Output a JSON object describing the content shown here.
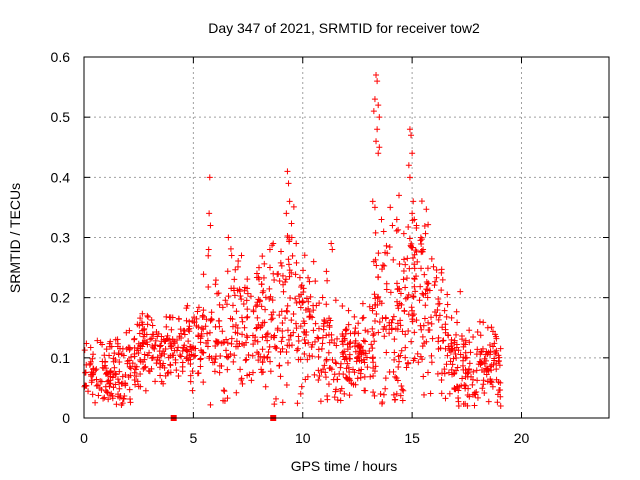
{
  "chart_data": {
    "type": "scatter",
    "title": "Day 347 of 2021, SRMTID for receiver tow2",
    "xlabel": "GPS time / hours",
    "ylabel": "SRMTID / TECUs",
    "xlim": [
      0,
      24
    ],
    "ylim": [
      0,
      0.6
    ],
    "xticks": [
      0,
      5,
      10,
      15,
      20
    ],
    "yticks": [
      0,
      0.1,
      0.2,
      0.3,
      0.4,
      0.5,
      0.6
    ],
    "xtick_labels": [
      "0",
      "5",
      "10",
      "15",
      "20"
    ],
    "ytick_labels": [
      "0",
      "0.1",
      "0.2",
      "0.3",
      "0.4",
      "0.5",
      "0.6"
    ],
    "grid": true,
    "marker": "+",
    "color": "#ff0000",
    "envelope": {
      "note": "approximate typical value and spread of SRMTID by hour",
      "hours": [
        0,
        0.5,
        1,
        1.5,
        2,
        2.5,
        3,
        3.5,
        4,
        4.5,
        5,
        5.5,
        6,
        6.5,
        7,
        7.5,
        8,
        8.5,
        9,
        9.5,
        10,
        10.5,
        11,
        11.5,
        12,
        12.5,
        13,
        13.5,
        14,
        14.5,
        15,
        15.5,
        16,
        16.5,
        17,
        17.5,
        18,
        18.5,
        19
      ],
      "median": [
        0.08,
        0.075,
        0.07,
        0.08,
        0.09,
        0.11,
        0.12,
        0.11,
        0.11,
        0.12,
        0.12,
        0.13,
        0.15,
        0.14,
        0.15,
        0.15,
        0.14,
        0.15,
        0.18,
        0.2,
        0.17,
        0.14,
        0.12,
        0.1,
        0.1,
        0.1,
        0.11,
        0.18,
        0.16,
        0.17,
        0.2,
        0.2,
        0.18,
        0.14,
        0.09,
        0.09,
        0.09,
        0.09,
        0.08
      ],
      "spread": [
        0.025,
        0.025,
        0.025,
        0.03,
        0.03,
        0.04,
        0.035,
        0.025,
        0.025,
        0.03,
        0.03,
        0.05,
        0.06,
        0.06,
        0.06,
        0.06,
        0.05,
        0.06,
        0.07,
        0.08,
        0.06,
        0.05,
        0.05,
        0.04,
        0.035,
        0.035,
        0.04,
        0.09,
        0.08,
        0.08,
        0.08,
        0.07,
        0.06,
        0.05,
        0.04,
        0.035,
        0.035,
        0.035,
        0.03
      ]
    },
    "peak_points": [
      {
        "x": 5.75,
        "y": 0.4
      },
      {
        "x": 5.72,
        "y": 0.34
      },
      {
        "x": 5.78,
        "y": 0.32
      },
      {
        "x": 5.7,
        "y": 0.28
      },
      {
        "x": 6.6,
        "y": 0.3
      },
      {
        "x": 6.75,
        "y": 0.27
      },
      {
        "x": 7.2,
        "y": 0.27
      },
      {
        "x": 8.0,
        "y": 0.25
      },
      {
        "x": 8.5,
        "y": 0.28
      },
      {
        "x": 8.65,
        "y": 0.29
      },
      {
        "x": 9.3,
        "y": 0.41
      },
      {
        "x": 9.35,
        "y": 0.39
      },
      {
        "x": 9.4,
        "y": 0.36
      },
      {
        "x": 9.25,
        "y": 0.34
      },
      {
        "x": 9.5,
        "y": 0.3
      },
      {
        "x": 9.7,
        "y": 0.29
      },
      {
        "x": 10.5,
        "y": 0.26
      },
      {
        "x": 11.3,
        "y": 0.29
      },
      {
        "x": 11.35,
        "y": 0.28
      },
      {
        "x": 12.75,
        "y": 0.19
      },
      {
        "x": 13.35,
        "y": 0.57
      },
      {
        "x": 13.4,
        "y": 0.56
      },
      {
        "x": 13.3,
        "y": 0.53
      },
      {
        "x": 13.45,
        "y": 0.52
      },
      {
        "x": 13.25,
        "y": 0.51
      },
      {
        "x": 13.5,
        "y": 0.5
      },
      {
        "x": 13.4,
        "y": 0.48
      },
      {
        "x": 13.35,
        "y": 0.46
      },
      {
        "x": 13.5,
        "y": 0.45
      },
      {
        "x": 13.45,
        "y": 0.44
      },
      {
        "x": 13.2,
        "y": 0.36
      },
      {
        "x": 13.3,
        "y": 0.35
      },
      {
        "x": 13.6,
        "y": 0.33
      },
      {
        "x": 13.7,
        "y": 0.31
      },
      {
        "x": 13.25,
        "y": 0.26
      },
      {
        "x": 14.0,
        "y": 0.35
      },
      {
        "x": 14.1,
        "y": 0.32
      },
      {
        "x": 14.4,
        "y": 0.37
      },
      {
        "x": 14.3,
        "y": 0.33
      },
      {
        "x": 14.9,
        "y": 0.48
      },
      {
        "x": 14.95,
        "y": 0.47
      },
      {
        "x": 15.0,
        "y": 0.44
      },
      {
        "x": 14.85,
        "y": 0.42
      },
      {
        "x": 14.9,
        "y": 0.4
      },
      {
        "x": 15.05,
        "y": 0.36
      },
      {
        "x": 15.0,
        "y": 0.34
      },
      {
        "x": 15.1,
        "y": 0.33
      },
      {
        "x": 15.2,
        "y": 0.32
      },
      {
        "x": 15.4,
        "y": 0.3
      },
      {
        "x": 15.5,
        "y": 0.28
      },
      {
        "x": 17.2,
        "y": 0.21
      },
      {
        "x": 18.1,
        "y": 0.16
      },
      {
        "x": 11.9,
        "y": 0.04
      },
      {
        "x": 14.3,
        "y": 0.04
      },
      {
        "x": 19.05,
        "y": 0.02
      },
      {
        "x": 1.0,
        "y": 0.045
      },
      {
        "x": 11.6,
        "y": 0.03
      }
    ],
    "gap_markers": [
      {
        "x": 4.1,
        "y": 0
      },
      {
        "x": 8.65,
        "y": 0
      }
    ]
  }
}
